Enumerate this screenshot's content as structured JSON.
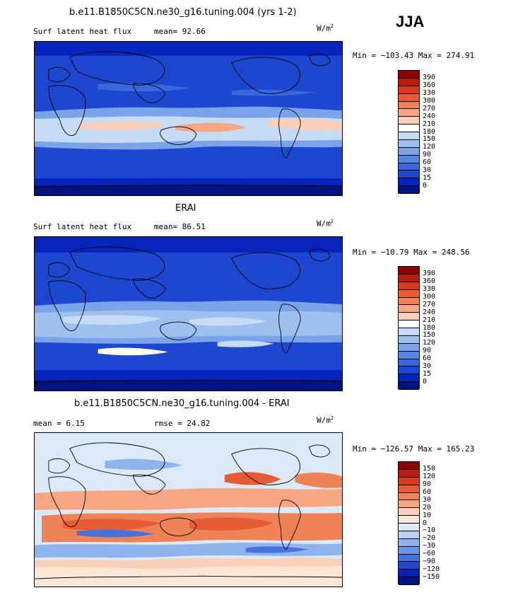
{
  "season": "JJA",
  "panels": [
    {
      "id": "model",
      "title": "b.e11.B1850C5CN.ne30_g16.tuning.004 (yrs 1-2)",
      "field_label": "Surf latent heat flux",
      "stat1": "mean=  92.66",
      "stat2": "",
      "units_base": "W/m",
      "units_exp": "2",
      "minmax": "Min = −103.43 Max = 274.91",
      "colorbar": {
        "labels": [
          "390",
          "360",
          "330",
          "300",
          "270",
          "240",
          "210",
          "180",
          "150",
          "120",
          "90",
          "60",
          "30",
          "15",
          "0"
        ],
        "colors": [
          "#8b0000",
          "#b71c0c",
          "#d83b1b",
          "#e65c35",
          "#f08258",
          "#f6a682",
          "#fad1b8",
          "#ffffff",
          "#c6dbf5",
          "#9ec0ef",
          "#7aa3ea",
          "#5785e4",
          "#3a68dc",
          "#1d47cf",
          "#0524bc",
          "#001380"
        ]
      }
    },
    {
      "id": "obs",
      "title": "ERAI",
      "field_label": "Surf latent heat flux",
      "stat1": "mean=  86.51",
      "stat2": "",
      "units_base": "W/m",
      "units_exp": "2",
      "minmax": "Min = −10.79 Max = 248.56",
      "colorbar": {
        "labels": [
          "390",
          "360",
          "330",
          "300",
          "270",
          "240",
          "210",
          "180",
          "150",
          "120",
          "90",
          "60",
          "30",
          "15",
          "0"
        ],
        "colors": [
          "#8b0000",
          "#b71c0c",
          "#d83b1b",
          "#e65c35",
          "#f08258",
          "#f6a682",
          "#fad1b8",
          "#ffffff",
          "#c6dbf5",
          "#9ec0ef",
          "#7aa3ea",
          "#5785e4",
          "#3a68dc",
          "#1d47cf",
          "#0524bc",
          "#001380"
        ]
      }
    },
    {
      "id": "diff",
      "title": "b.e11.B1850C5CN.ne30_g16.tuning.004 - ERAI",
      "field_label": "",
      "stat1": "mean =   6.15",
      "stat2": "rmse =  24.82",
      "units_base": "W/m",
      "units_exp": "2",
      "minmax": "Min = −126.57 Max = 165.23",
      "colorbar": {
        "labels": [
          "150",
          "120",
          "90",
          "60",
          "30",
          "20",
          "10",
          "0",
          "−10",
          "−20",
          "−30",
          "−60",
          "−90",
          "−120",
          "−150"
        ],
        "colors": [
          "#8b0000",
          "#b71c0c",
          "#d83b1b",
          "#e65c35",
          "#f08258",
          "#f6a682",
          "#fad1b8",
          "#ffe7d6",
          "#dce9f8",
          "#b9d1f2",
          "#8fb3ec",
          "#6a94e6",
          "#4672dd",
          "#2249cc",
          "#0a22b6",
          "#001380"
        ]
      }
    }
  ]
}
